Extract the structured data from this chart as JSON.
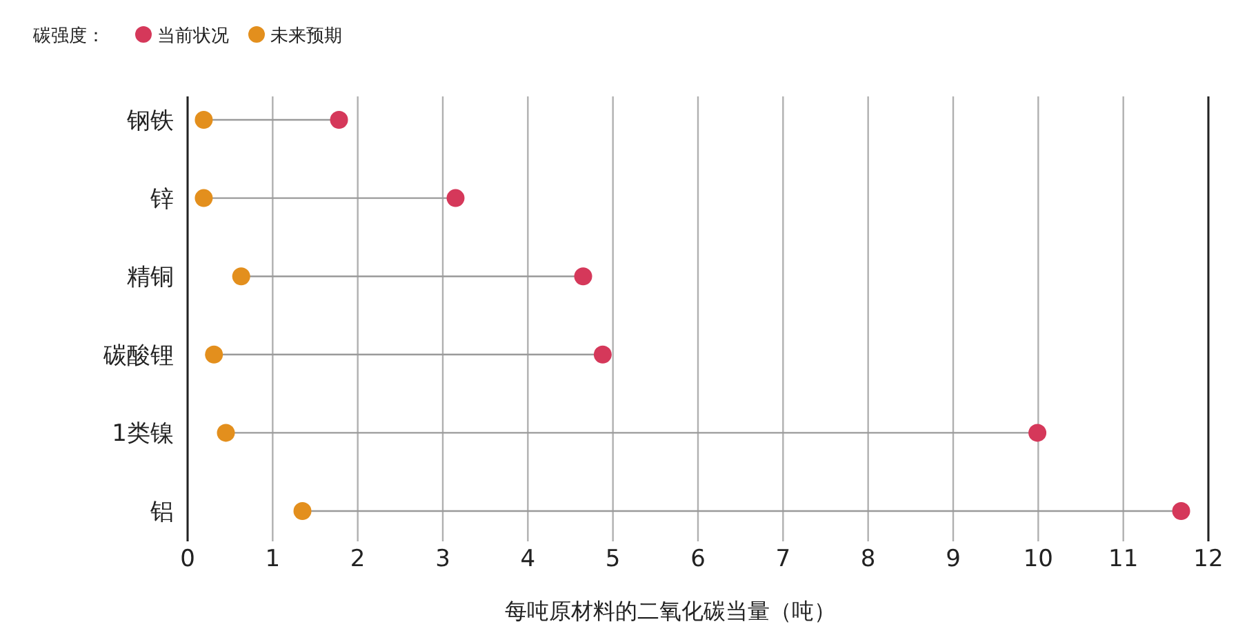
{
  "chart_data": {
    "type": "scatter",
    "orientation": "horizontal",
    "xlabel": "每吨原材料的二氧化碳当量（吨）",
    "legend_title": "碳强度：",
    "legend": "top left",
    "grid": "x",
    "marker": "circle",
    "categories": [
      "钢铁",
      "锌",
      "精铜",
      "碳酸锂",
      "1类镍",
      "铝"
    ],
    "series": [
      {
        "name": "当前状况",
        "color": "#d5385a",
        "values": [
          1.78,
          3.15,
          4.65,
          4.88,
          9.99,
          11.68
        ]
      },
      {
        "name": "未来预期",
        "color": "#e38f1d",
        "values": [
          0.19,
          0.19,
          0.63,
          0.31,
          0.45,
          1.35
        ]
      }
    ],
    "xlim": [
      0,
      12
    ],
    "xticks": [
      0,
      1,
      2,
      3,
      4,
      5,
      6,
      7,
      8,
      9,
      10,
      11,
      12
    ]
  }
}
